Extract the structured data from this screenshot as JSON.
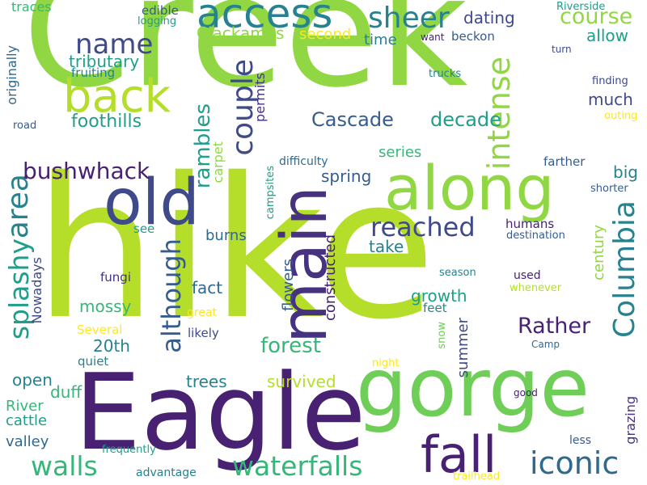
{
  "palette": {
    "dark_purple": "#46327e",
    "deep_violet": "#482173",
    "indigo": "#3e4a89",
    "slate_blue": "#365c8d",
    "steel_blue": "#31688e",
    "teal_blue": "#26828e",
    "teal": "#1f9e89",
    "sea_green": "#35b779",
    "green": "#6ece58",
    "lime": "#90d743",
    "yellow_green": "#b5de2b",
    "yellow": "#fde725"
  },
  "words": [
    {
      "text": "Creek",
      "color": "#90d743"
    },
    {
      "text": "hike",
      "color": "#b5de2b"
    },
    {
      "text": "Eagle",
      "color": "#482173"
    },
    {
      "text": "gorge",
      "color": "#6ece58"
    },
    {
      "text": "along",
      "color": "#90d743"
    },
    {
      "text": "old",
      "color": "#3e4a89"
    },
    {
      "text": "main",
      "color": "#46327e"
    },
    {
      "text": "access",
      "color": "#26828e"
    },
    {
      "text": "back",
      "color": "#b5de2b"
    },
    {
      "text": "fall",
      "color": "#482173"
    },
    {
      "text": "waterfalls",
      "color": "#35b779"
    },
    {
      "text": "iconic",
      "color": "#31688e"
    },
    {
      "text": "walls",
      "color": "#35b779"
    },
    {
      "text": "Columbia",
      "color": "#26828e"
    },
    {
      "text": "reached",
      "color": "#3e4a89"
    },
    {
      "text": "couple",
      "color": "#3e4a89"
    },
    {
      "text": "intense",
      "color": "#90d743"
    },
    {
      "text": "sheer",
      "color": "#26828e"
    },
    {
      "text": "name",
      "color": "#3e4a89"
    },
    {
      "text": "area",
      "color": "#26828e"
    },
    {
      "text": "splashy",
      "color": "#1f9e89"
    },
    {
      "text": "although",
      "color": "#365c8d"
    },
    {
      "text": "bushwhack",
      "color": "#482173"
    },
    {
      "text": "course",
      "color": "#90d743"
    },
    {
      "text": "Rather",
      "color": "#482173"
    },
    {
      "text": "forest",
      "color": "#35b779"
    },
    {
      "text": "rambles",
      "color": "#1f9e89"
    },
    {
      "text": "Cascade",
      "color": "#365c8d"
    },
    {
      "text": "decade",
      "color": "#1f9e89"
    },
    {
      "text": "tributary",
      "color": "#1f9e89"
    },
    {
      "text": "foothills",
      "color": "#1f9e89"
    },
    {
      "text": "Clackamas",
      "color": "#90d743"
    },
    {
      "text": "dating",
      "color": "#3e4a89"
    },
    {
      "text": "allow",
      "color": "#1f9e89"
    },
    {
      "text": "time",
      "color": "#26828e"
    },
    {
      "text": "second",
      "color": "#fde725"
    },
    {
      "text": "much",
      "color": "#3e4a89"
    },
    {
      "text": "series",
      "color": "#35b779"
    },
    {
      "text": "spring",
      "color": "#365c8d"
    },
    {
      "text": "big",
      "color": "#26828e"
    },
    {
      "text": "burns",
      "color": "#31688e"
    },
    {
      "text": "take",
      "color": "#26828e"
    },
    {
      "text": "fact",
      "color": "#31688e"
    },
    {
      "text": "mossy",
      "color": "#35b779"
    },
    {
      "text": "growth",
      "color": "#1f9e89"
    },
    {
      "text": "20th",
      "color": "#26828e"
    },
    {
      "text": "trees",
      "color": "#26828e"
    },
    {
      "text": "survived",
      "color": "#b5de2b"
    },
    {
      "text": "open",
      "color": "#26828e"
    },
    {
      "text": "duff",
      "color": "#35b779"
    },
    {
      "text": "River",
      "color": "#35b779"
    },
    {
      "text": "cattle",
      "color": "#1f9e89"
    },
    {
      "text": "valley",
      "color": "#31688e"
    },
    {
      "text": "flowers",
      "color": "#365c8d"
    },
    {
      "text": "constructed",
      "color": "#482173"
    },
    {
      "text": "century",
      "color": "#90d743"
    },
    {
      "text": "summer",
      "color": "#3e4a89"
    },
    {
      "text": "grazing",
      "color": "#46327e"
    },
    {
      "text": "Nowadays",
      "color": "#3e4a89"
    },
    {
      "text": "permits",
      "color": "#46327e"
    },
    {
      "text": "carpet",
      "color": "#90d743"
    },
    {
      "text": "originally",
      "color": "#31688e"
    },
    {
      "text": "edible",
      "color": "#365c8d"
    },
    {
      "text": "logging",
      "color": "#1f9e89"
    },
    {
      "text": "fruiting",
      "color": "#26828e"
    },
    {
      "text": "traces",
      "color": "#35b779"
    },
    {
      "text": "road",
      "color": "#365c8d"
    },
    {
      "text": "Riverside",
      "color": "#1f9e89"
    },
    {
      "text": "want",
      "color": "#482173"
    },
    {
      "text": "beckon",
      "color": "#365c8d"
    },
    {
      "text": "turn",
      "color": "#3e4a89"
    },
    {
      "text": "trucks",
      "color": "#26828e"
    },
    {
      "text": "finding",
      "color": "#3e4a89"
    },
    {
      "text": "outing",
      "color": "#fde725"
    },
    {
      "text": "farther",
      "color": "#365c8d"
    },
    {
      "text": "shorter",
      "color": "#365c8d"
    },
    {
      "text": "difficulty",
      "color": "#31688e"
    },
    {
      "text": "campsites",
      "color": "#1f9e89"
    },
    {
      "text": "see",
      "color": "#1f9e89"
    },
    {
      "text": "humans",
      "color": "#482173"
    },
    {
      "text": "destination",
      "color": "#365c8d"
    },
    {
      "text": "fungi",
      "color": "#46327e"
    },
    {
      "text": "season",
      "color": "#26828e"
    },
    {
      "text": "used",
      "color": "#482173"
    },
    {
      "text": "whenever",
      "color": "#b5de2b"
    },
    {
      "text": "feet",
      "color": "#26828e"
    },
    {
      "text": "great",
      "color": "#fde725"
    },
    {
      "text": "Several",
      "color": "#fde725"
    },
    {
      "text": "likely",
      "color": "#3e4a89"
    },
    {
      "text": "quiet",
      "color": "#26828e"
    },
    {
      "text": "snow",
      "color": "#6ece58"
    },
    {
      "text": "night",
      "color": "#fde725"
    },
    {
      "text": "Camp",
      "color": "#31688e"
    },
    {
      "text": "good",
      "color": "#482173"
    },
    {
      "text": "less",
      "color": "#365c8d"
    },
    {
      "text": "frequently",
      "color": "#1f9e89"
    },
    {
      "text": "advantage",
      "color": "#26828e"
    },
    {
      "text": "trailhead",
      "color": "#fde725"
    }
  ]
}
